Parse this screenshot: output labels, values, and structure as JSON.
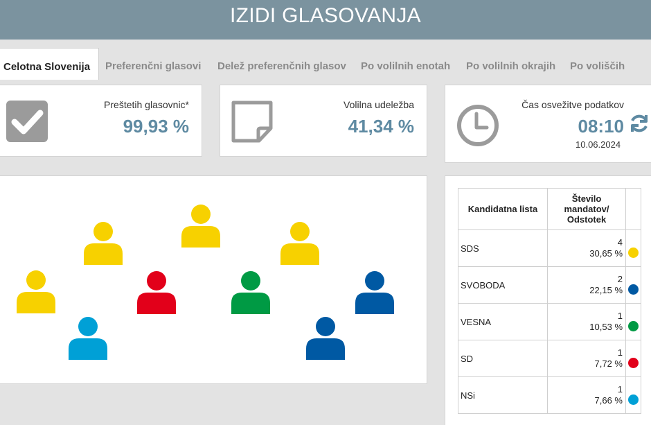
{
  "header": {
    "title": "IZIDI GLASOVANJA"
  },
  "tabs": [
    {
      "label": "Celotna Slovenija",
      "active": true
    },
    {
      "label": "Preferenčni glasovi"
    },
    {
      "label": "Delež preferenčnih glasov"
    },
    {
      "label": "Po volilnih enotah"
    },
    {
      "label": "Po volilnih okrajih"
    },
    {
      "label": "Po voliščih"
    }
  ],
  "stats": {
    "counted": {
      "label": "Preštetih glasovnic*",
      "value": "99,93 %",
      "icon": "checkbox-icon"
    },
    "turnout": {
      "label": "Volilna udeležba",
      "value": "41,34 %",
      "icon": "note-icon"
    },
    "refresh": {
      "label": "Čas osvežitve podatkov",
      "time": "08:10",
      "date": "10.06.2024",
      "icon": "clock-icon",
      "action_icon": "refresh-icon"
    }
  },
  "seats": [
    {
      "party": "SDS",
      "color": "#f7d100"
    },
    {
      "party": "SDS",
      "color": "#f7d100"
    },
    {
      "party": "SDS",
      "color": "#f7d100"
    },
    {
      "party": "SDS",
      "color": "#f7d100"
    },
    {
      "party": "SD",
      "color": "#e2001a"
    },
    {
      "party": "VESNA",
      "color": "#009a44"
    },
    {
      "party": "SVOBODA",
      "color": "#0059a3"
    },
    {
      "party": "SVOBODA",
      "color": "#0059a3"
    },
    {
      "party": "NSi",
      "color": "#00a0d6"
    }
  ],
  "table": {
    "headers": [
      "Kandidatna lista",
      "Število mandatov/ Odstotek"
    ],
    "rows": [
      {
        "party": "SDS",
        "seats": "4",
        "percent": "30,65 %",
        "color": "#f7d100"
      },
      {
        "party": "SVOBODA",
        "seats": "2",
        "percent": "22,15 %",
        "color": "#0059a3"
      },
      {
        "party": "VESNA",
        "seats": "1",
        "percent": "10,53 %",
        "color": "#009a44"
      },
      {
        "party": "SD",
        "seats": "1",
        "percent": "7,72 %",
        "color": "#e2001a"
      },
      {
        "party": "NSi",
        "seats": "1",
        "percent": "7,66 %",
        "color": "#00a0d6"
      }
    ]
  }
}
